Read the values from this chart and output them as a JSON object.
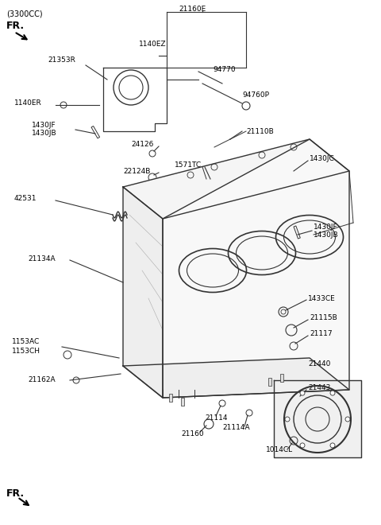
{
  "title": "",
  "bg_color": "#ffffff",
  "line_color": "#333333",
  "text_color": "#000000",
  "fig_width": 4.8,
  "fig_height": 6.6,
  "dpi": 100,
  "labels": {
    "cc": "(3300CC)",
    "fr_top": "FR.",
    "fr_bottom": "FR.",
    "21160E": "21160E",
    "1140EZ": "1140EZ",
    "21353R": "21353R",
    "94770": "94770",
    "94760P": "94760P",
    "21110B": "21110B",
    "1430JC": "1430JC",
    "1140ER": "1140ER",
    "1430JF": "1430JF",
    "1430JB": "1430JB",
    "24126": "24126",
    "22124B": "22124B",
    "1571TC": "1571TC",
    "42531": "42531",
    "21134A": "21134A",
    "1153AC": "1153AC",
    "1153CH": "1153CH",
    "21162A": "21162A",
    "21114": "21114",
    "21114A": "21114A",
    "21160": "21160",
    "1430JF_r": "1430JF",
    "1430JB_r": "1430JB",
    "1433CE": "1433CE",
    "21115B": "21115B",
    "21117": "21117",
    "21440": "21440",
    "21443": "21443",
    "1014CL": "1014CL"
  }
}
